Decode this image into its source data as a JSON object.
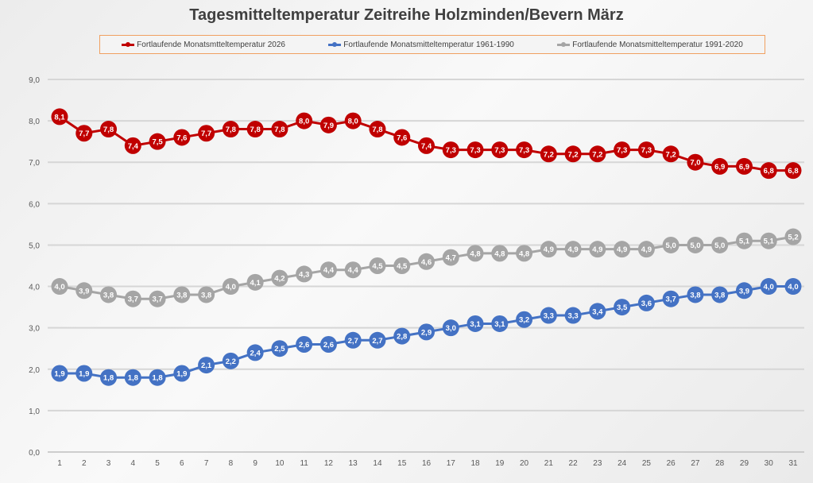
{
  "chart_data": {
    "type": "line",
    "title": "Tagesmitteltemperatur Zeitreihe Holzminden/Bevern März",
    "xlabel": "",
    "ylabel": "",
    "x": [
      1,
      2,
      3,
      4,
      5,
      6,
      7,
      8,
      9,
      10,
      11,
      12,
      13,
      14,
      15,
      16,
      17,
      18,
      19,
      20,
      21,
      22,
      23,
      24,
      25,
      26,
      27,
      28,
      29,
      30,
      31
    ],
    "ylim": [
      0,
      9
    ],
    "yticks": [
      "0,0",
      "1,0",
      "2,0",
      "3,0",
      "4,0",
      "5,0",
      "6,0",
      "7,0",
      "8,0",
      "9,0"
    ],
    "grid": true,
    "legend_position": "top",
    "series": [
      {
        "name": "Fortlaufende Monatsmtteltemperatur 2026",
        "color": "#c00000",
        "values": [
          8.1,
          7.7,
          7.8,
          7.4,
          7.5,
          7.6,
          7.7,
          7.8,
          7.8,
          7.8,
          8.0,
          7.9,
          8.0,
          7.8,
          7.6,
          7.4,
          7.3,
          7.3,
          7.3,
          7.3,
          7.2,
          7.2,
          7.2,
          7.3,
          7.3,
          7.2,
          7.0,
          6.9,
          6.9,
          6.8,
          6.8
        ]
      },
      {
        "name": "Fortlaufende Monatsmitteltemperatur 1961-1990",
        "color": "#4472c4",
        "values": [
          1.9,
          1.9,
          1.8,
          1.8,
          1.8,
          1.9,
          2.1,
          2.2,
          2.4,
          2.5,
          2.6,
          2.6,
          2.7,
          2.7,
          2.8,
          2.9,
          3.0,
          3.1,
          3.1,
          3.2,
          3.3,
          3.3,
          3.4,
          3.5,
          3.6,
          3.7,
          3.8,
          3.8,
          3.9,
          4.0,
          4.0
        ]
      },
      {
        "name": "Fortlaufende Monatsmitteltemperatur 1991-2020",
        "color": "#a5a5a5",
        "values": [
          4.0,
          3.9,
          3.8,
          3.7,
          3.7,
          3.8,
          3.8,
          4.0,
          4.1,
          4.2,
          4.3,
          4.4,
          4.4,
          4.5,
          4.5,
          4.6,
          4.7,
          4.8,
          4.8,
          4.8,
          4.9,
          4.9,
          4.9,
          4.9,
          4.9,
          5.0,
          5.0,
          5.0,
          5.1,
          5.1,
          5.2
        ]
      }
    ]
  }
}
